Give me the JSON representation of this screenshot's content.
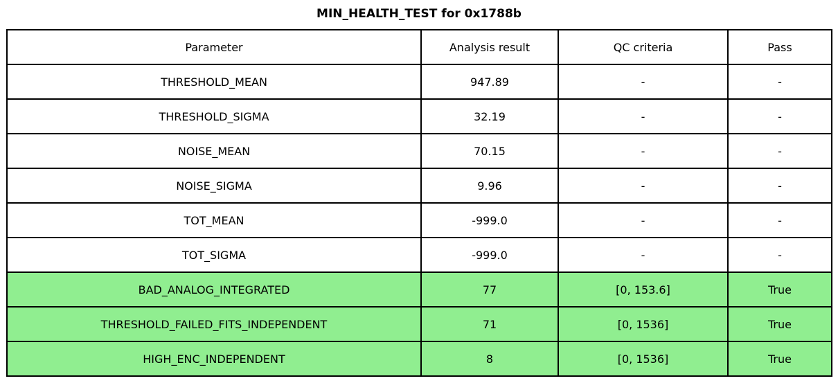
{
  "title": "MIN_HEALTH_TEST for 0x1788b",
  "colors": {
    "pass_row_bg": "#90EE90",
    "border": "#000000",
    "background": "#FFFFFF",
    "text": "#000000"
  },
  "table": {
    "columns": [
      "Parameter",
      "Analysis result",
      "QC criteria",
      "Pass"
    ],
    "rows": [
      {
        "parameter": "THRESHOLD_MEAN",
        "result": "947.89",
        "qc": "-",
        "pass": "-",
        "highlight": false
      },
      {
        "parameter": "THRESHOLD_SIGMA",
        "result": "32.19",
        "qc": "-",
        "pass": "-",
        "highlight": false
      },
      {
        "parameter": "NOISE_MEAN",
        "result": "70.15",
        "qc": "-",
        "pass": "-",
        "highlight": false
      },
      {
        "parameter": "NOISE_SIGMA",
        "result": "9.96",
        "qc": "-",
        "pass": "-",
        "highlight": false
      },
      {
        "parameter": "TOT_MEAN",
        "result": "-999.0",
        "qc": "-",
        "pass": "-",
        "highlight": false
      },
      {
        "parameter": "TOT_SIGMA",
        "result": "-999.0",
        "qc": "-",
        "pass": "-",
        "highlight": false
      },
      {
        "parameter": "BAD_ANALOG_INTEGRATED",
        "result": "77",
        "qc": "[0, 153.6]",
        "pass": "True",
        "highlight": true
      },
      {
        "parameter": "THRESHOLD_FAILED_FITS_INDEPENDENT",
        "result": "71",
        "qc": "[0, 1536]",
        "pass": "True",
        "highlight": true
      },
      {
        "parameter": "HIGH_ENC_INDEPENDENT",
        "result": "8",
        "qc": "[0, 1536]",
        "pass": "True",
        "highlight": true
      }
    ]
  },
  "chart_data": {
    "type": "table",
    "title": "MIN_HEALTH_TEST for 0x1788b",
    "columns": [
      "Parameter",
      "Analysis result",
      "QC criteria",
      "Pass"
    ],
    "rows": [
      [
        "THRESHOLD_MEAN",
        "947.89",
        "-",
        "-"
      ],
      [
        "THRESHOLD_SIGMA",
        "32.19",
        "-",
        "-"
      ],
      [
        "NOISE_MEAN",
        "70.15",
        "-",
        "-"
      ],
      [
        "NOISE_SIGMA",
        "9.96",
        "-",
        "-"
      ],
      [
        "TOT_MEAN",
        "-999.0",
        "-",
        "-"
      ],
      [
        "TOT_SIGMA",
        "-999.0",
        "-",
        "-"
      ],
      [
        "BAD_ANALOG_INTEGRATED",
        "77",
        "[0, 153.6]",
        "True"
      ],
      [
        "THRESHOLD_FAILED_FITS_INDEPENDENT",
        "71",
        "[0, 1536]",
        "True"
      ],
      [
        "HIGH_ENC_INDEPENDENT",
        "8",
        "[0, 1536]",
        "True"
      ]
    ],
    "highlighted_rows": [
      6,
      7,
      8
    ],
    "highlight_color": "#90EE90",
    "layout": "title centered above full-width bordered table, last three rows green to indicate passing QC checks"
  }
}
